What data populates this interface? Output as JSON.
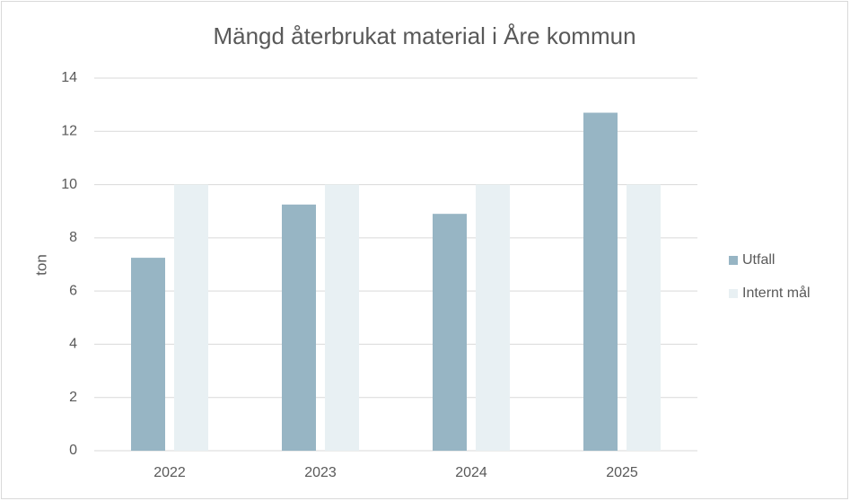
{
  "chart_data": {
    "type": "bar",
    "title": "Mängd återbrukat material i Åre kommun",
    "y_label": "ton",
    "categories": [
      "2022",
      "2023",
      "2024",
      "2025"
    ],
    "series": [
      {
        "name": "Utfall",
        "color": "#97b5c4",
        "values": [
          7.25,
          9.25,
          8.9,
          12.7
        ]
      },
      {
        "name": "Internt mål",
        "color": "#e8f0f3",
        "values": [
          10,
          10,
          10,
          10
        ]
      }
    ],
    "ylim": [
      0,
      14
    ],
    "yticks": [
      0,
      2,
      4,
      6,
      8,
      10,
      12,
      14
    ],
    "grid": true,
    "legend": "right"
  }
}
